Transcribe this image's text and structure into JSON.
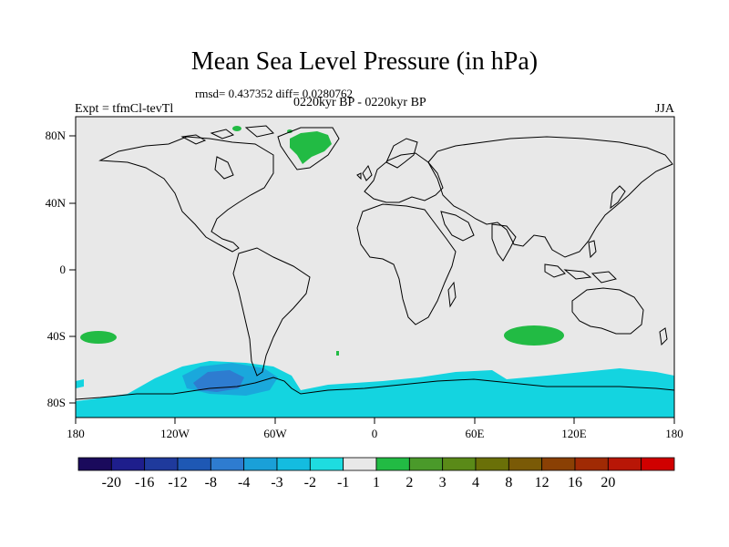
{
  "title": "Mean Sea Level Pressure (in hPa)",
  "stats": "rmsd= 0.437352 diff= 0.0280762",
  "period": "0220kyr BP - 0220kyr BP",
  "experiment": "Expt = tfmCl-tevTl",
  "season": "JJA",
  "lat_ticks": [
    "80N",
    "40N",
    "0",
    "40S",
    "80S"
  ],
  "lon_ticks": [
    "180",
    "120W",
    "60W",
    "0",
    "60E",
    "120E",
    "180"
  ],
  "colorbar": {
    "colors": [
      "#1a0a5c",
      "#1e1e8c",
      "#1f3a9c",
      "#1e58b4",
      "#2e7cd0",
      "#1aa0d8",
      "#14bce0",
      "#1edce0",
      "#e8e8e8",
      "#22bb44",
      "#4a9a2a",
      "#5a8a18",
      "#6a7008",
      "#7a5a06",
      "#8a4004",
      "#a02a04",
      "#b81606",
      "#d00000"
    ],
    "labels": [
      "-20",
      "-16",
      "-12",
      "-8",
      "-4",
      "-3",
      "-2",
      "-1",
      "1",
      "2",
      "3",
      "4",
      "8",
      "12",
      "16",
      "20"
    ]
  },
  "map_colors": {
    "background": "#e8e8e8",
    "positive": "#22bb44",
    "neg1": "#14d4e0",
    "neg2": "#1aa8dc",
    "neg3": "#2e7cd0",
    "coast": "#000000"
  }
}
